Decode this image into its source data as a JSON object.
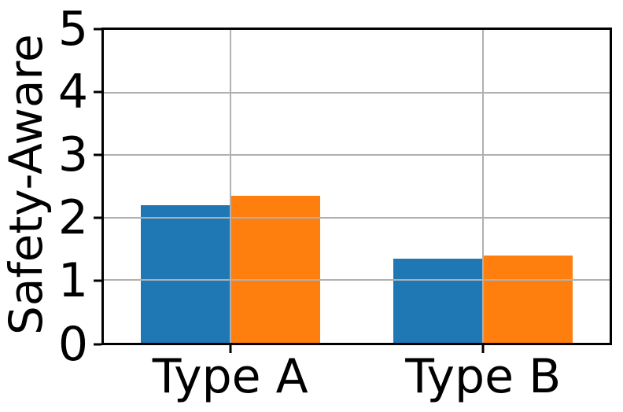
{
  "chart_data": {
    "type": "bar",
    "title": "",
    "xlabel": "",
    "ylabel": "Safety-Aware",
    "categories": [
      "Type A",
      "Type B"
    ],
    "series": [
      {
        "color": "#1f77b4",
        "values": [
          2.2,
          1.35
        ]
      },
      {
        "color": "#ff7f0e",
        "values": [
          2.35,
          1.4
        ]
      }
    ],
    "ylim": [
      0,
      5
    ],
    "yticks": [
      "0",
      "1",
      "2",
      "3",
      "4",
      "5"
    ],
    "grid": true,
    "legend": "none",
    "colors": {
      "grid": "#b0b0b0",
      "spine": "#000000",
      "text": "#000000",
      "background": "#ffffff"
    }
  }
}
